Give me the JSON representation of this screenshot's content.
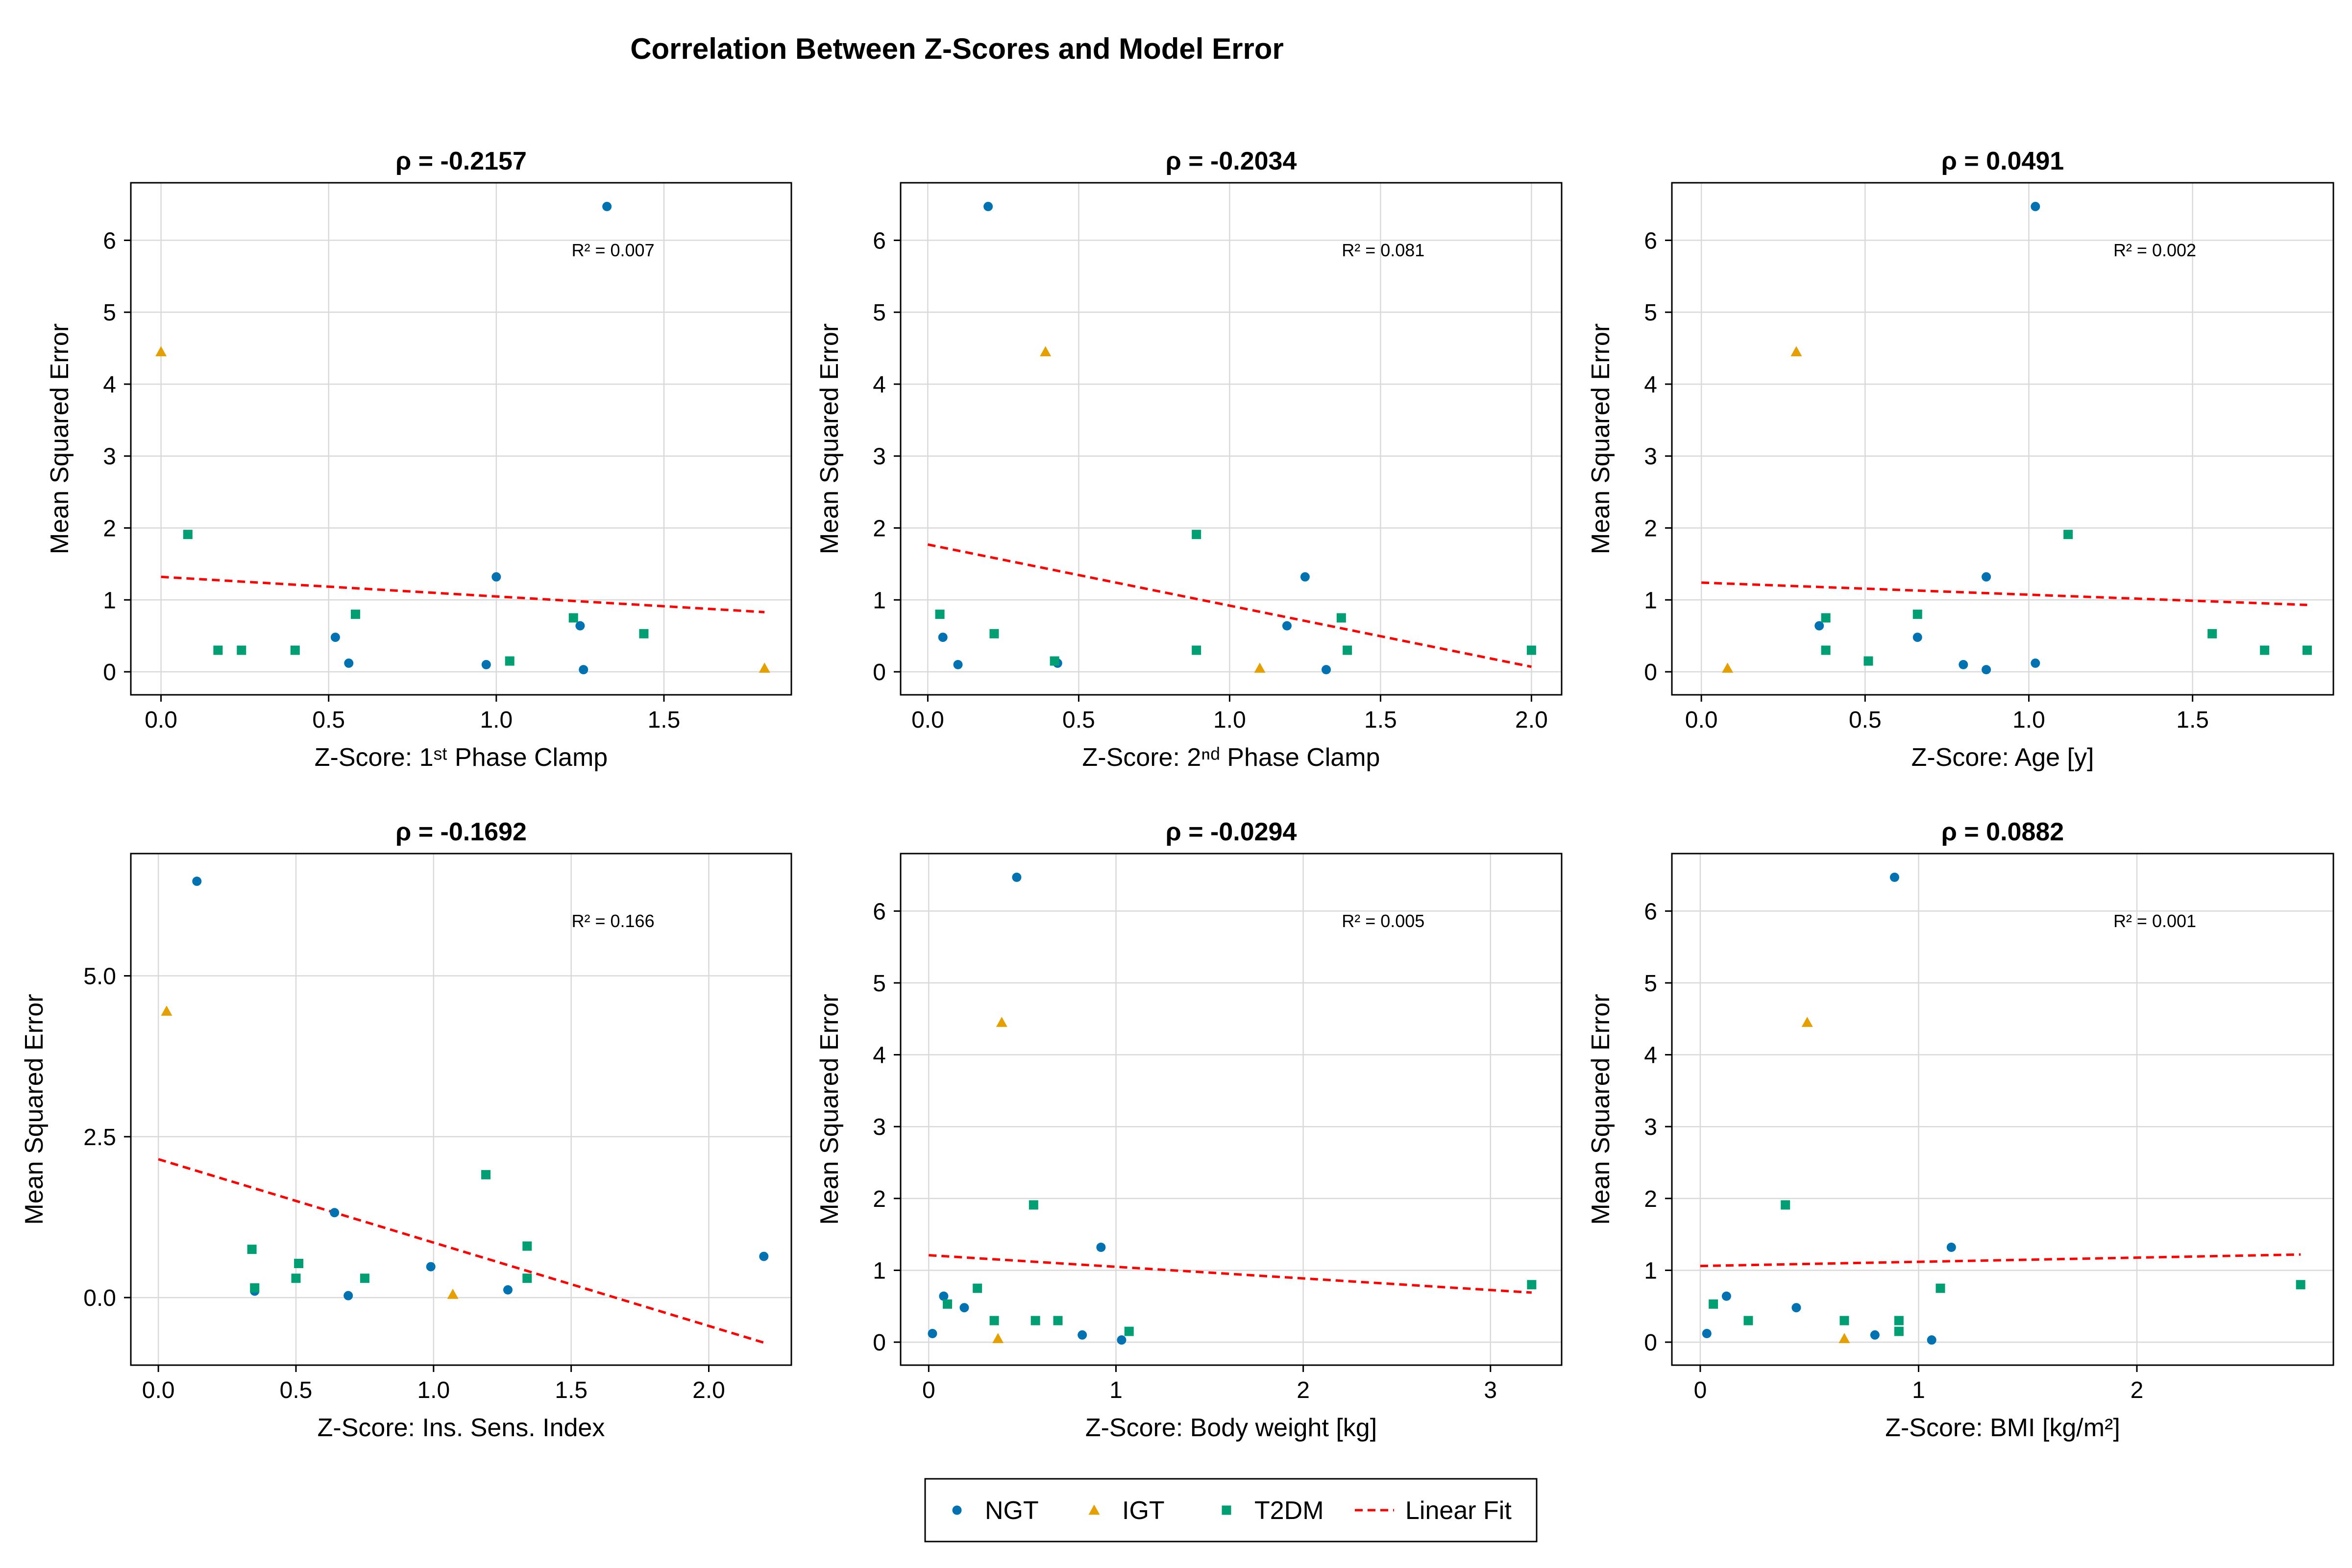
{
  "title": "Correlation Between Z-Scores and Model Error",
  "legend": {
    "entries": [
      {
        "label": "NGT",
        "marker": "circle",
        "color": "#0072B2"
      },
      {
        "label": "IGT",
        "marker": "triangle",
        "color": "#E69F00"
      },
      {
        "label": "T2DM",
        "marker": "square",
        "color": "#009E73"
      },
      {
        "label": "Linear Fit",
        "marker": "dashed-line",
        "color": "#FF0000"
      }
    ]
  },
  "chart_data": [
    {
      "type": "scatter",
      "title": "ρ = -0.2157",
      "annotation": "R² = 0.007",
      "xlabel": "Z-Score: 1ˢᵗ Phase Clamp",
      "ylabel": "Mean Squared Error",
      "xlim": [
        -0.09,
        1.88
      ],
      "ylim": [
        -0.32,
        6.8
      ],
      "xticks": [
        0.0,
        0.5,
        1.0,
        1.5
      ],
      "xtick_labels": [
        "0.0",
        "0.5",
        "1.0",
        "1.5"
      ],
      "yticks": [
        0,
        1,
        2,
        3,
        4,
        5,
        6
      ],
      "ytick_labels": [
        "0",
        "1",
        "2",
        "3",
        "4",
        "5",
        "6"
      ],
      "series": [
        {
          "name": "NGT",
          "points": [
            [
              1.33,
              6.47
            ],
            [
              1.0,
              1.32
            ],
            [
              0.52,
              0.48
            ],
            [
              1.25,
              0.64
            ],
            [
              0.56,
              0.12
            ],
            [
              0.97,
              0.1
            ],
            [
              1.26,
              0.03
            ]
          ]
        },
        {
          "name": "IGT",
          "points": [
            [
              0.0,
              4.45
            ],
            [
              1.8,
              0.05
            ]
          ]
        },
        {
          "name": "T2DM",
          "points": [
            [
              0.08,
              1.91
            ],
            [
              0.17,
              0.3
            ],
            [
              0.24,
              0.3
            ],
            [
              0.4,
              0.3
            ],
            [
              0.58,
              0.8
            ],
            [
              1.04,
              0.15
            ],
            [
              1.23,
              0.75
            ],
            [
              1.44,
              0.53
            ]
          ]
        },
        {
          "name": "Linear Fit",
          "line": [
            [
              0.0,
              1.32
            ],
            [
              1.8,
              0.83
            ]
          ]
        }
      ]
    },
    {
      "type": "scatter",
      "title": "ρ = -0.2034",
      "annotation": "R² = 0.081",
      "xlabel": "Z-Score: 2ⁿᵈ Phase Clamp",
      "ylabel": "Mean Squared Error",
      "xlim": [
        -0.09,
        2.1
      ],
      "ylim": [
        -0.32,
        6.8
      ],
      "xticks": [
        0.0,
        0.5,
        1.0,
        1.5,
        2.0
      ],
      "xtick_labels": [
        "0.0",
        "0.5",
        "1.0",
        "1.5",
        "2.0"
      ],
      "yticks": [
        0,
        1,
        2,
        3,
        4,
        5,
        6
      ],
      "ytick_labels": [
        "0",
        "1",
        "2",
        "3",
        "4",
        "5",
        "6"
      ],
      "series": [
        {
          "name": "NGT",
          "points": [
            [
              0.2,
              6.47
            ],
            [
              0.05,
              0.48
            ],
            [
              0.1,
              0.1
            ],
            [
              1.25,
              1.32
            ],
            [
              1.19,
              0.64
            ],
            [
              0.43,
              0.12
            ],
            [
              1.32,
              0.03
            ]
          ]
        },
        {
          "name": "IGT",
          "points": [
            [
              0.39,
              4.45
            ],
            [
              1.1,
              0.05
            ]
          ]
        },
        {
          "name": "T2DM",
          "points": [
            [
              0.04,
              0.8
            ],
            [
              0.22,
              0.53
            ],
            [
              0.42,
              0.15
            ],
            [
              0.89,
              1.91
            ],
            [
              0.89,
              0.3
            ],
            [
              1.37,
              0.75
            ],
            [
              1.39,
              0.3
            ],
            [
              2.0,
              0.3
            ]
          ]
        },
        {
          "name": "Linear Fit",
          "line": [
            [
              0.0,
              1.77
            ],
            [
              2.0,
              0.07
            ]
          ]
        }
      ]
    },
    {
      "type": "scatter",
      "title": "ρ = 0.0491",
      "annotation": "R² = 0.002",
      "xlabel": "Z-Score: Age [y]",
      "ylabel": "Mean Squared Error",
      "xlim": [
        -0.09,
        1.93
      ],
      "ylim": [
        -0.32,
        6.8
      ],
      "xticks": [
        0.0,
        0.5,
        1.0,
        1.5
      ],
      "xtick_labels": [
        "0.0",
        "0.5",
        "1.0",
        "1.5"
      ],
      "yticks": [
        0,
        1,
        2,
        3,
        4,
        5,
        6
      ],
      "ytick_labels": [
        "0",
        "1",
        "2",
        "3",
        "4",
        "5",
        "6"
      ],
      "series": [
        {
          "name": "NGT",
          "points": [
            [
              1.02,
              6.47
            ],
            [
              0.87,
              1.32
            ],
            [
              0.36,
              0.64
            ],
            [
              0.66,
              0.48
            ],
            [
              0.8,
              0.1
            ],
            [
              0.87,
              0.03
            ],
            [
              1.02,
              0.12
            ]
          ]
        },
        {
          "name": "IGT",
          "points": [
            [
              0.29,
              4.45
            ],
            [
              0.08,
              0.05
            ]
          ]
        },
        {
          "name": "T2DM",
          "points": [
            [
              1.12,
              1.91
            ],
            [
              0.38,
              0.75
            ],
            [
              0.38,
              0.3
            ],
            [
              0.51,
              0.15
            ],
            [
              0.66,
              0.8
            ],
            [
              1.56,
              0.53
            ],
            [
              1.72,
              0.3
            ],
            [
              1.85,
              0.3
            ]
          ]
        },
        {
          "name": "Linear Fit",
          "line": [
            [
              0.0,
              1.24
            ],
            [
              1.85,
              0.93
            ]
          ]
        }
      ]
    },
    {
      "type": "scatter",
      "title": "ρ = -0.1692",
      "annotation": "R² = 0.166",
      "xlabel": "Z-Score: Ins. Sens. Index",
      "ylabel": "Mean Squared Error",
      "xlim": [
        -0.1,
        2.3
      ],
      "ylim": [
        -1.05,
        6.9
      ],
      "xticks": [
        0.0,
        0.5,
        1.0,
        1.5,
        2.0
      ],
      "xtick_labels": [
        "0.0",
        "0.5",
        "1.0",
        "1.5",
        "2.0"
      ],
      "yticks": [
        0.0,
        2.5,
        5.0
      ],
      "ytick_labels": [
        "0.0",
        "2.5",
        "5.0"
      ],
      "series": [
        {
          "name": "NGT",
          "points": [
            [
              0.14,
              6.47
            ],
            [
              0.64,
              1.32
            ],
            [
              0.99,
              0.48
            ],
            [
              2.2,
              0.64
            ],
            [
              0.69,
              0.03
            ],
            [
              1.27,
              0.12
            ],
            [
              0.35,
              0.1
            ]
          ]
        },
        {
          "name": "IGT",
          "points": [
            [
              0.03,
              4.45
            ],
            [
              1.07,
              0.05
            ]
          ]
        },
        {
          "name": "T2DM",
          "points": [
            [
              0.34,
              0.75
            ],
            [
              0.35,
              0.15
            ],
            [
              0.5,
              0.3
            ],
            [
              0.51,
              0.53
            ],
            [
              0.75,
              0.3
            ],
            [
              1.19,
              1.91
            ],
            [
              1.34,
              0.8
            ],
            [
              1.34,
              0.3
            ]
          ]
        },
        {
          "name": "Linear Fit",
          "line": [
            [
              0.0,
              2.15
            ],
            [
              2.2,
              -0.7
            ]
          ]
        }
      ]
    },
    {
      "type": "scatter",
      "title": "ρ = -0.0294",
      "annotation": "R² = 0.005",
      "xlabel": "Z-Score: Body weight [kg]",
      "ylabel": "Mean Squared Error",
      "xlim": [
        -0.15,
        3.38
      ],
      "ylim": [
        -0.32,
        6.8
      ],
      "xticks": [
        0,
        1,
        2,
        3
      ],
      "xtick_labels": [
        "0",
        "1",
        "2",
        "3"
      ],
      "yticks": [
        0,
        1,
        2,
        3,
        4,
        5,
        6
      ],
      "ytick_labels": [
        "0",
        "1",
        "2",
        "3",
        "4",
        "5",
        "6"
      ],
      "series": [
        {
          "name": "NGT",
          "points": [
            [
              0.47,
              6.47
            ],
            [
              0.92,
              1.32
            ],
            [
              0.08,
              0.64
            ],
            [
              0.19,
              0.48
            ],
            [
              0.02,
              0.12
            ],
            [
              0.82,
              0.1
            ],
            [
              1.03,
              0.03
            ]
          ]
        },
        {
          "name": "IGT",
          "points": [
            [
              0.39,
              4.45
            ],
            [
              0.37,
              0.05
            ]
          ]
        },
        {
          "name": "T2DM",
          "points": [
            [
              0.1,
              0.53
            ],
            [
              0.26,
              0.75
            ],
            [
              0.35,
              0.3
            ],
            [
              0.56,
              1.91
            ],
            [
              0.57,
              0.3
            ],
            [
              0.69,
              0.3
            ],
            [
              1.07,
              0.15
            ],
            [
              3.22,
              0.8
            ]
          ]
        },
        {
          "name": "Linear Fit",
          "line": [
            [
              0.0,
              1.21
            ],
            [
              3.22,
              0.69
            ]
          ]
        }
      ]
    },
    {
      "type": "scatter",
      "title": "ρ = 0.0882",
      "annotation": "R² = 0.001",
      "xlabel": "Z-Score: BMI [kg/m²]",
      "ylabel": "Mean Squared Error",
      "xlim": [
        -0.13,
        2.9
      ],
      "ylim": [
        -0.32,
        6.8
      ],
      "xticks": [
        0,
        1,
        2
      ],
      "xtick_labels": [
        "0",
        "1",
        "2"
      ],
      "yticks": [
        0,
        1,
        2,
        3,
        4,
        5,
        6
      ],
      "ytick_labels": [
        "0",
        "1",
        "2",
        "3",
        "4",
        "5",
        "6"
      ],
      "series": [
        {
          "name": "NGT",
          "points": [
            [
              0.89,
              6.47
            ],
            [
              1.15,
              1.32
            ],
            [
              0.12,
              0.64
            ],
            [
              0.44,
              0.48
            ],
            [
              0.03,
              0.12
            ],
            [
              0.8,
              0.1
            ],
            [
              1.06,
              0.03
            ]
          ]
        },
        {
          "name": "IGT",
          "points": [
            [
              0.49,
              4.45
            ],
            [
              0.66,
              0.05
            ]
          ]
        },
        {
          "name": "T2DM",
          "points": [
            [
              0.06,
              0.53
            ],
            [
              0.22,
              0.3
            ],
            [
              0.39,
              1.91
            ],
            [
              0.66,
              0.3
            ],
            [
              0.91,
              0.3
            ],
            [
              0.91,
              0.15
            ],
            [
              1.1,
              0.75
            ],
            [
              2.75,
              0.8
            ]
          ]
        },
        {
          "name": "Linear Fit",
          "line": [
            [
              0.0,
              1.06
            ],
            [
              2.75,
              1.22
            ]
          ]
        }
      ]
    }
  ]
}
